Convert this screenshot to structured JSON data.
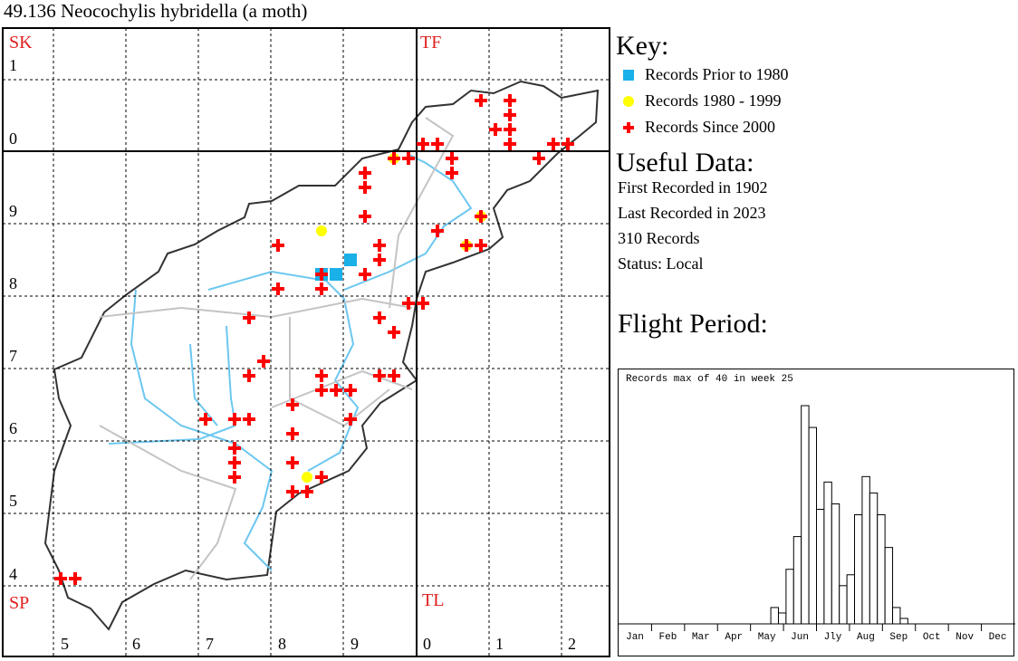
{
  "title": "49.136 Neocochylis hybridella (a moth)",
  "map": {
    "square_labels": {
      "SK": "SK",
      "TF": "TF",
      "SP": "SP",
      "TL": "TL"
    },
    "row_labels": [
      "1",
      "0",
      "9",
      "8",
      "7",
      "6",
      "5",
      "4"
    ],
    "col_labels": [
      "5",
      "6",
      "7",
      "8",
      "9",
      "0",
      "1",
      "2"
    ],
    "colors": {
      "prior_1980": "#1ab0e8",
      "1980_1999": "#ffff00",
      "since_2000": "#ff0000",
      "woodland": "#6cbf1c",
      "river": "#6cc7f0",
      "road": "#c0c0c0",
      "boundary": "#333333"
    }
  },
  "key": {
    "heading": "Key:",
    "items": [
      {
        "label": "Records Prior to 1980",
        "symbol": "blue-square"
      },
      {
        "label": "Records 1980 - 1999",
        "symbol": "yellow-circle"
      },
      {
        "label": "Records Since 2000",
        "symbol": "red-cross"
      }
    ]
  },
  "useful": {
    "heading": "Useful Data:",
    "first": "First Recorded in 1902",
    "last": "Last Recorded in 2023",
    "count": "310 Records",
    "status": "Status: Local"
  },
  "flight": {
    "heading": "Flight Period:"
  },
  "chart_data": {
    "type": "bar",
    "title": "Records max of 40 in week 25",
    "x_unit": "week",
    "weeks": [
      21,
      22,
      23,
      24,
      25,
      26,
      27,
      28,
      29,
      30,
      31,
      32,
      33,
      34,
      35,
      36,
      37,
      38
    ],
    "values": [
      3,
      2,
      10,
      16,
      40,
      36,
      21,
      26,
      22,
      7,
      9,
      20,
      27,
      24,
      20,
      14,
      3,
      1
    ],
    "ylim": [
      0,
      40
    ],
    "months": [
      "Jan",
      "Feb",
      "Mar",
      "Apr",
      "May",
      "Jun",
      "Jly",
      "Aug",
      "Sep",
      "Oct",
      "Nov",
      "Dec"
    ]
  }
}
